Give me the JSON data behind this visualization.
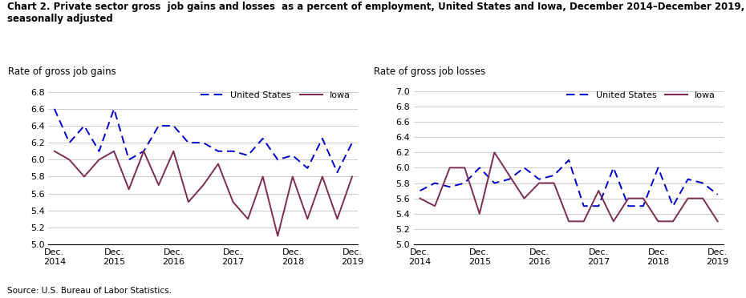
{
  "title": "Chart 2. Private sector gross  job gains and losses  as a percent of employment, United States and Iowa, December 2014–December 2019,",
  "title2": "seasonally adjusted",
  "source": "Source: U.S. Bureau of Labor Statistics.",
  "left_ylabel": "Rate of gross job gains",
  "right_ylabel": "Rate of gross job losses",
  "x_labels": [
    "Dec.\n2014",
    "Dec.\n2015",
    "Dec.\n2016",
    "Dec.\n2017",
    "Dec.\n2018",
    "Dec.\n2019"
  ],
  "x_positions": [
    0,
    2,
    4,
    6,
    8,
    10
  ],
  "us_color": "#0000cc",
  "iowa_color": "#7b2d52",
  "left_ylim": [
    5.0,
    6.9
  ],
  "right_ylim": [
    5.0,
    7.1
  ],
  "left_yticks": [
    5.0,
    5.2,
    5.4,
    5.6,
    5.8,
    6.0,
    6.2,
    6.4,
    6.6,
    6.8
  ],
  "right_yticks": [
    5.0,
    5.2,
    5.4,
    5.6,
    5.8,
    6.0,
    6.2,
    6.4,
    6.6,
    6.8,
    7.0
  ],
  "gains_us_x": [
    0,
    0.5,
    1.0,
    1.5,
    2.0,
    2.5,
    3.0,
    3.5,
    4.0,
    4.5,
    5.0,
    5.5,
    6.0,
    6.5,
    7.0,
    7.5,
    8.0,
    8.5,
    9.0,
    9.5,
    10.0
  ],
  "gains_us_y": [
    6.6,
    6.2,
    6.4,
    6.1,
    6.6,
    6.0,
    6.1,
    6.4,
    6.4,
    6.2,
    6.2,
    6.1,
    6.1,
    6.05,
    6.25,
    6.0,
    6.05,
    5.9,
    6.25,
    5.85,
    6.2
  ],
  "gains_iowa_x": [
    0,
    0.5,
    1.0,
    1.5,
    2.0,
    2.5,
    3.0,
    3.5,
    4.0,
    4.5,
    5.0,
    5.5,
    6.0,
    6.5,
    7.0,
    7.5,
    8.0,
    8.5,
    9.0,
    9.5,
    10.0
  ],
  "gains_iowa_y": [
    6.1,
    6.0,
    5.8,
    6.0,
    6.1,
    5.65,
    6.1,
    5.7,
    6.1,
    5.5,
    5.7,
    5.95,
    5.5,
    5.3,
    5.8,
    5.1,
    5.8,
    5.3,
    5.8,
    5.3,
    5.8
  ],
  "losses_us_x": [
    0,
    0.5,
    1.0,
    1.5,
    2.0,
    2.5,
    3.0,
    3.5,
    4.0,
    4.5,
    5.0,
    5.5,
    6.0,
    6.5,
    7.0,
    7.5,
    8.0,
    8.5,
    9.0,
    9.5,
    10.0
  ],
  "losses_us_y": [
    5.7,
    5.8,
    5.75,
    5.8,
    6.0,
    5.8,
    5.85,
    6.0,
    5.85,
    5.9,
    6.1,
    5.5,
    5.5,
    6.0,
    5.5,
    5.5,
    6.0,
    5.5,
    5.85,
    5.8,
    5.65
  ],
  "losses_iowa_x": [
    0,
    0.5,
    1.0,
    1.5,
    2.0,
    2.5,
    3.0,
    3.5,
    4.0,
    4.5,
    5.0,
    5.5,
    6.0,
    6.5,
    7.0,
    7.5,
    8.0,
    8.5,
    9.0,
    9.5,
    10.0
  ],
  "losses_iowa_y": [
    5.6,
    5.5,
    6.0,
    6.0,
    5.4,
    6.2,
    5.9,
    5.6,
    5.8,
    5.8,
    5.3,
    5.3,
    5.7,
    5.3,
    5.6,
    5.6,
    5.3,
    5.3,
    5.6,
    5.6,
    5.3
  ]
}
